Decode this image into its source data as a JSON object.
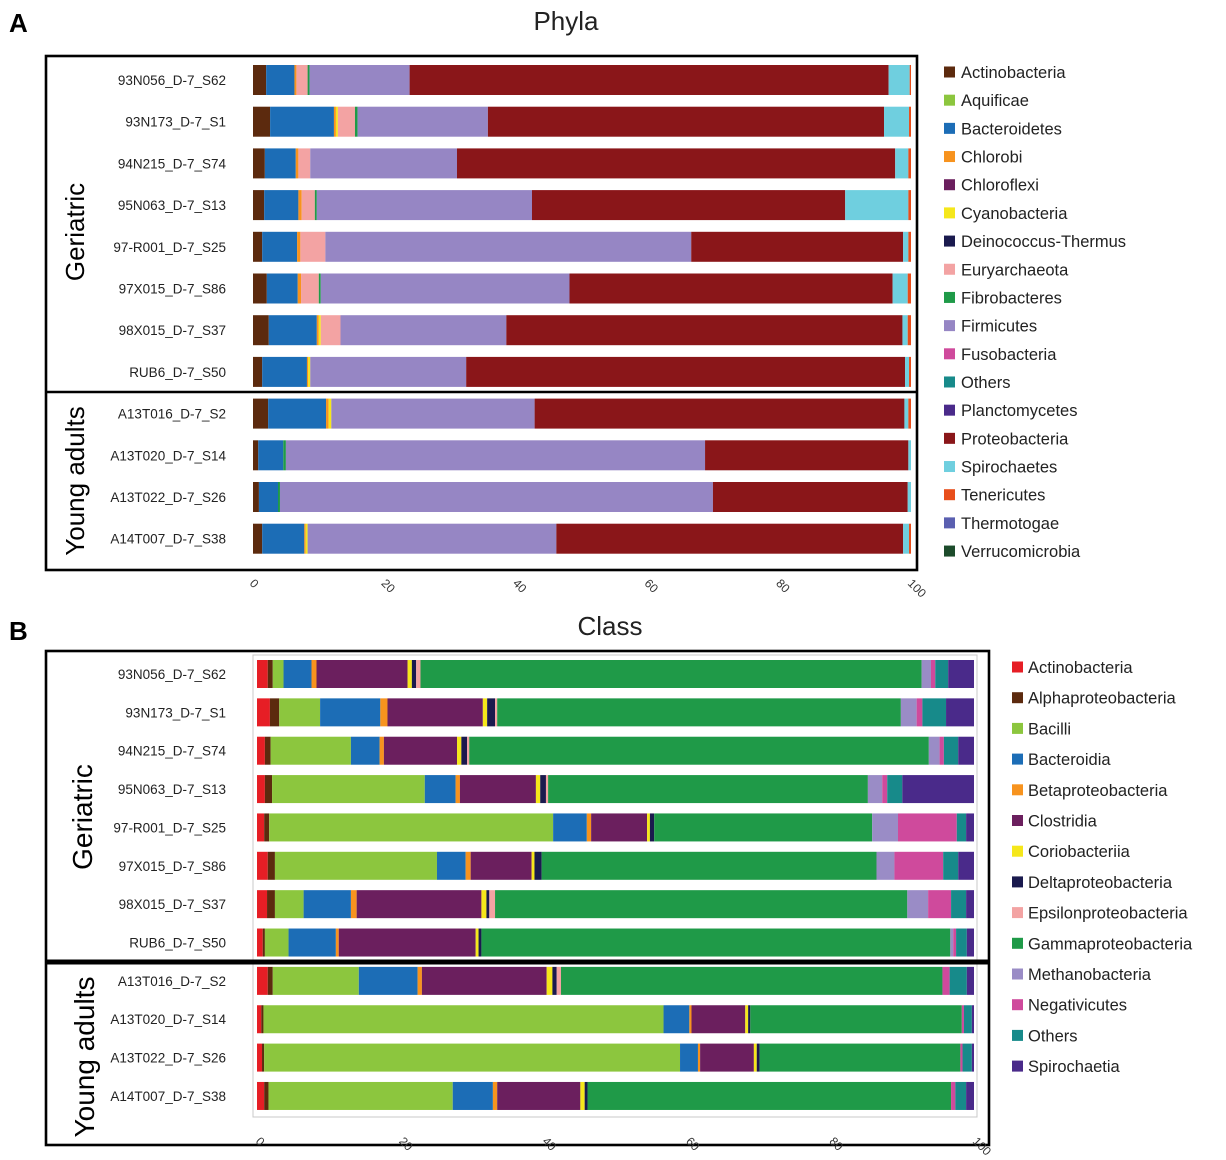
{
  "chart_data": [
    {
      "type": "bar",
      "stacked": true,
      "horizontal": true,
      "panel_label": "A",
      "title": "Phyla",
      "categories": [
        "93N056_D-7_S62",
        "93N173_D-7_S1",
        "94N215_D-7_S74",
        "95N063_D-7_S13",
        "97-R001_D-7_S25",
        "97X015_D-7_S86",
        "98X015_D-7_S37",
        "RUB6_D-7_S50",
        "A13T016_D-7_S2",
        "A13T020_D-7_S14",
        "A13T022_D-7_S26",
        "A14T007_D-7_S38"
      ],
      "groups": [
        "Geriatric",
        "Young adults"
      ],
      "category_group": [
        0,
        0,
        0,
        0,
        0,
        0,
        0,
        0,
        1,
        1,
        1,
        1
      ],
      "xlim": [
        0,
        100
      ],
      "xticks": [
        0,
        20,
        40,
        60,
        80,
        100
      ],
      "series": [
        {
          "name": "Actinobacteria",
          "color": "#5c2a0e",
          "values": [
            2.0,
            2.6,
            1.8,
            1.7,
            1.4,
            2.1,
            2.4,
            1.4,
            2.3,
            0.8,
            0.9,
            1.4
          ]
        },
        {
          "name": "Aquificae",
          "color": "#8cc63e",
          "values": [
            0,
            0,
            0,
            0,
            0,
            0,
            0,
            0,
            0,
            0,
            0,
            0
          ]
        },
        {
          "name": "Bacteroidetes",
          "color": "#1c6db6",
          "values": [
            4.3,
            9.7,
            4.7,
            5.2,
            5.3,
            4.7,
            7.3,
            6.8,
            8.8,
            3.8,
            2.9,
            6.4
          ]
        },
        {
          "name": "Chlorobi",
          "color": "#f7931e",
          "values": [
            0.3,
            0.3,
            0.4,
            0.5,
            0.5,
            0.5,
            0.3,
            0.2,
            0.4,
            0,
            0,
            0.2
          ]
        },
        {
          "name": "Chloroflexi",
          "color": "#6b1f5e",
          "values": [
            0,
            0,
            0,
            0,
            0,
            0,
            0,
            0,
            0,
            0,
            0,
            0
          ]
        },
        {
          "name": "Cyanobacteria",
          "color": "#f5e71b",
          "values": [
            0,
            0.3,
            0,
            0,
            0,
            0,
            0.3,
            0.3,
            0.4,
            0,
            0,
            0.3
          ]
        },
        {
          "name": "Deinococcus-Thermus",
          "color": "#1a1a4e",
          "values": [
            0,
            0,
            0,
            0,
            0,
            0,
            0,
            0,
            0,
            0,
            0,
            0
          ]
        },
        {
          "name": "Euryarchaeota",
          "color": "#f3a3a3",
          "values": [
            1.7,
            2.6,
            1.8,
            2.0,
            3.8,
            2.7,
            3.0,
            0,
            0,
            0,
            0,
            0
          ]
        },
        {
          "name": "Fibrobacteres",
          "color": "#1f9a48",
          "values": [
            0.3,
            0.4,
            0,
            0.3,
            0,
            0.3,
            0,
            0,
            0,
            0.4,
            0.3,
            0
          ]
        },
        {
          "name": "Firmicutes",
          "color": "#9686c4",
          "values": [
            15.2,
            19.8,
            22.3,
            32.7,
            55.6,
            37.8,
            25.2,
            23.7,
            30.9,
            63.7,
            65.8,
            37.8
          ]
        },
        {
          "name": "Fusobacteria",
          "color": "#cf4a9c",
          "values": [
            0,
            0,
            0,
            0,
            0,
            0,
            0,
            0,
            0,
            0,
            0,
            0
          ]
        },
        {
          "name": "Others",
          "color": "#178a8a",
          "values": [
            0,
            0,
            0,
            0,
            0,
            0,
            0,
            0,
            0,
            0,
            0,
            0
          ]
        },
        {
          "name": "Planctomycetes",
          "color": "#4a2a8a",
          "values": [
            0,
            0,
            0,
            0,
            0,
            0,
            0,
            0,
            0,
            0,
            0,
            0
          ]
        },
        {
          "name": "Proteobacteria",
          "color": "#8a1619",
          "values": [
            72.8,
            60.2,
            66.6,
            47.6,
            32.2,
            49.1,
            60.2,
            66.7,
            56.2,
            30.9,
            29.6,
            52.7
          ]
        },
        {
          "name": "Spirochaetes",
          "color": "#6fcfdf",
          "values": [
            3.2,
            3.8,
            2.0,
            9.6,
            0.8,
            2.3,
            0.8,
            0.6,
            0.6,
            0.4,
            0.5,
            0.9
          ]
        },
        {
          "name": "Tenericutes",
          "color": "#e84e1b",
          "values": [
            0.2,
            0.3,
            0.4,
            0.4,
            0.4,
            0.5,
            0.5,
            0.3,
            0.4,
            0,
            0,
            0.3
          ]
        },
        {
          "name": "Thermotogae",
          "color": "#5a5fb0",
          "values": [
            0,
            0,
            0,
            0,
            0,
            0,
            0,
            0,
            0,
            0,
            0,
            0
          ]
        },
        {
          "name": "Verrucomicrobia",
          "color": "#1c4b2b",
          "values": [
            0,
            0,
            0,
            0,
            0,
            0,
            0,
            0,
            0,
            0,
            0,
            0
          ]
        }
      ]
    },
    {
      "type": "bar",
      "stacked": true,
      "horizontal": true,
      "panel_label": "B",
      "title": "Class",
      "categories": [
        "93N056_D-7_S62",
        "93N173_D-7_S1",
        "94N215_D-7_S74",
        "95N063_D-7_S13",
        "97-R001_D-7_S25",
        "97X015_D-7_S86",
        "98X015_D-7_S37",
        "RUB6_D-7_S50",
        "A13T016_D-7_S2",
        "A13T020_D-7_S14",
        "A13T022_D-7_S26",
        "A14T007_D-7_S38"
      ],
      "groups": [
        "Geriatric",
        "Young adults"
      ],
      "category_group": [
        0,
        0,
        0,
        0,
        0,
        0,
        0,
        0,
        1,
        1,
        1,
        1
      ],
      "xlim": [
        0,
        100
      ],
      "xticks": [
        0,
        20,
        40,
        60,
        80,
        100
      ],
      "series": [
        {
          "name": "Actinobacteria",
          "color": "#e61e25",
          "values": [
            1.5,
            1.8,
            1.1,
            1.1,
            1.0,
            1.5,
            1.4,
            0.8,
            1.5,
            0.6,
            0.7,
            1.0
          ]
        },
        {
          "name": "Alphaproteobacteria",
          "color": "#5c2a0e",
          "values": [
            0.7,
            1.3,
            0.8,
            1.0,
            0.7,
            1.0,
            1.1,
            0.3,
            0.7,
            0.3,
            0.3,
            0.6
          ]
        },
        {
          "name": "Bacilli",
          "color": "#8cc63e",
          "values": [
            1.5,
            5.7,
            11.2,
            21.3,
            39.6,
            22.6,
            4.0,
            3.3,
            12.0,
            55.8,
            58.0,
            25.7
          ]
        },
        {
          "name": "Bacteroidia",
          "color": "#1c6db6",
          "values": [
            3.9,
            8.4,
            4.0,
            4.3,
            4.7,
            4.0,
            6.6,
            6.6,
            8.2,
            3.6,
            2.5,
            5.6
          ]
        },
        {
          "name": "Betaproteobacteria",
          "color": "#f7931e",
          "values": [
            0.7,
            1.0,
            0.6,
            0.6,
            0.6,
            0.7,
            0.8,
            0.4,
            0.6,
            0.3,
            0.3,
            0.6
          ]
        },
        {
          "name": "Clostridia",
          "color": "#6b1f5e",
          "values": [
            12.7,
            13.3,
            10.2,
            10.6,
            7.8,
            8.5,
            17.4,
            19.1,
            17.4,
            7.5,
            7.5,
            11.6
          ]
        },
        {
          "name": "Coriobacteriia",
          "color": "#f5e71b",
          "values": [
            0.6,
            0.6,
            0.6,
            0.6,
            0.4,
            0.4,
            0.7,
            0.4,
            0.8,
            0.4,
            0.4,
            0.6
          ]
        },
        {
          "name": "Deltaproteobacteria",
          "color": "#1a1a4e",
          "values": [
            0.6,
            1.1,
            0.8,
            0.8,
            0.6,
            1.0,
            0.4,
            0.4,
            0.6,
            0.3,
            0.4,
            0.4
          ]
        },
        {
          "name": "Epsilonproteobacteria",
          "color": "#f3a3a3",
          "values": [
            0.6,
            0.3,
            0.3,
            0.3,
            0,
            0,
            0.8,
            0,
            0.6,
            0,
            0,
            0
          ]
        },
        {
          "name": "Gammaproteobacteria",
          "color": "#1f9a48",
          "values": [
            69.9,
            56.3,
            64.1,
            44.6,
            30.4,
            46.7,
            57.5,
            65.4,
            53.2,
            29.5,
            28.0,
            50.7
          ]
        },
        {
          "name": "Methanobacteria",
          "color": "#9a8cc6",
          "values": [
            1.3,
            2.2,
            1.5,
            2.0,
            3.6,
            2.5,
            2.9,
            0.4,
            0,
            0,
            0,
            0
          ]
        },
        {
          "name": "Negativicutes",
          "color": "#cf4a9c",
          "values": [
            0.6,
            0.8,
            0.6,
            0.7,
            8.2,
            6.8,
            3.2,
            0.4,
            1.0,
            0.3,
            0.3,
            0.6
          ]
        },
        {
          "name": "Others",
          "color": "#178a8a",
          "values": [
            1.8,
            3.3,
            2.0,
            2.1,
            1.3,
            2.1,
            2.1,
            1.5,
            2.4,
            1.1,
            1.3,
            1.5
          ]
        },
        {
          "name": "Spirochaetia",
          "color": "#4a2a8a",
          "values": [
            3.6,
            3.9,
            2.2,
            10.0,
            1.1,
            2.2,
            1.1,
            1.0,
            1.0,
            0.3,
            0.3,
            1.1
          ]
        }
      ]
    }
  ]
}
